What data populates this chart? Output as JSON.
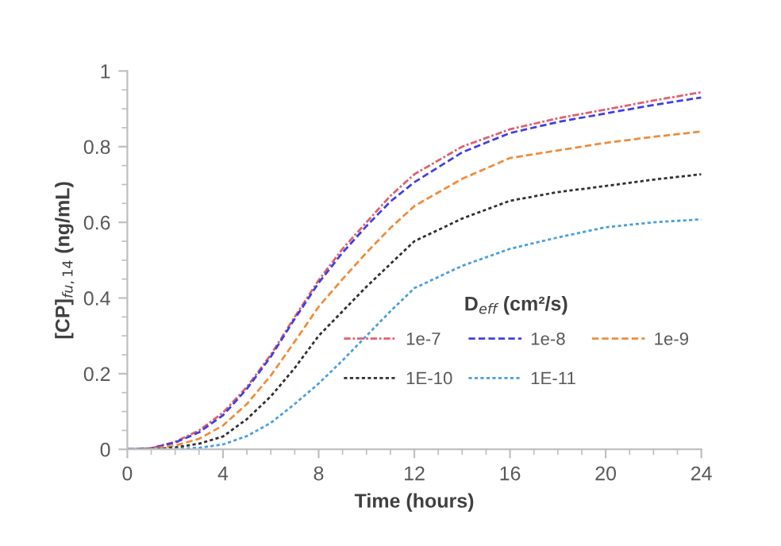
{
  "chart_data": {
    "type": "line",
    "xlabel": "Time (hours)",
    "ylabel": "[CP]$_{fu,14}$ (ng/mL)",
    "legend_title": "D$_{eff}$ (cm²/s)",
    "legend": "bottom right",
    "grid": false,
    "marker": "none",
    "xlim": [
      0,
      24
    ],
    "xticks": [
      0,
      4,
      8,
      12,
      16,
      20,
      24
    ],
    "ylim": [
      0,
      1
    ],
    "yticks": [
      0,
      0.2,
      0.4,
      0.6,
      0.8,
      1
    ],
    "x": [
      0,
      1,
      2,
      3,
      4,
      5,
      6,
      7,
      8,
      9,
      10,
      11,
      12,
      14,
      16,
      18,
      20,
      22,
      24
    ],
    "series": [
      {
        "name": "1e-7",
        "color": "#e06070",
        "line_style": "dashdot",
        "values": [
          0,
          0.003,
          0.02,
          0.05,
          0.097,
          0.165,
          0.25,
          0.35,
          0.447,
          0.53,
          0.6,
          0.67,
          0.727,
          0.8,
          0.846,
          0.875,
          0.898,
          0.922,
          0.944
        ]
      },
      {
        "name": "1e-8",
        "color": "#4040e0",
        "line_style": "dashed",
        "values": [
          0,
          0.003,
          0.018,
          0.045,
          0.09,
          0.16,
          0.245,
          0.345,
          0.44,
          0.52,
          0.59,
          0.655,
          0.706,
          0.785,
          0.836,
          0.865,
          0.888,
          0.91,
          0.93
        ]
      },
      {
        "name": "1e-9",
        "color": "#f08c3c",
        "line_style": "dashed",
        "values": [
          0,
          0.001,
          0.01,
          0.028,
          0.063,
          0.12,
          0.195,
          0.285,
          0.377,
          0.45,
          0.52,
          0.585,
          0.643,
          0.715,
          0.77,
          0.79,
          0.81,
          0.826,
          0.84
        ]
      },
      {
        "name": "1E-10",
        "color": "#303030",
        "line_style": "dotted",
        "values": [
          0,
          0,
          0.005,
          0.015,
          0.034,
          0.08,
          0.14,
          0.215,
          0.3,
          0.365,
          0.43,
          0.49,
          0.55,
          0.61,
          0.657,
          0.68,
          0.696,
          0.713,
          0.727
        ]
      },
      {
        "name": "1E-11",
        "color": "#4a9fdc",
        "line_style": "dotted",
        "values": [
          0,
          0,
          0.001,
          0.004,
          0.013,
          0.035,
          0.07,
          0.12,
          0.174,
          0.235,
          0.3,
          0.365,
          0.426,
          0.485,
          0.53,
          0.56,
          0.587,
          0.6,
          0.608
        ]
      }
    ]
  }
}
